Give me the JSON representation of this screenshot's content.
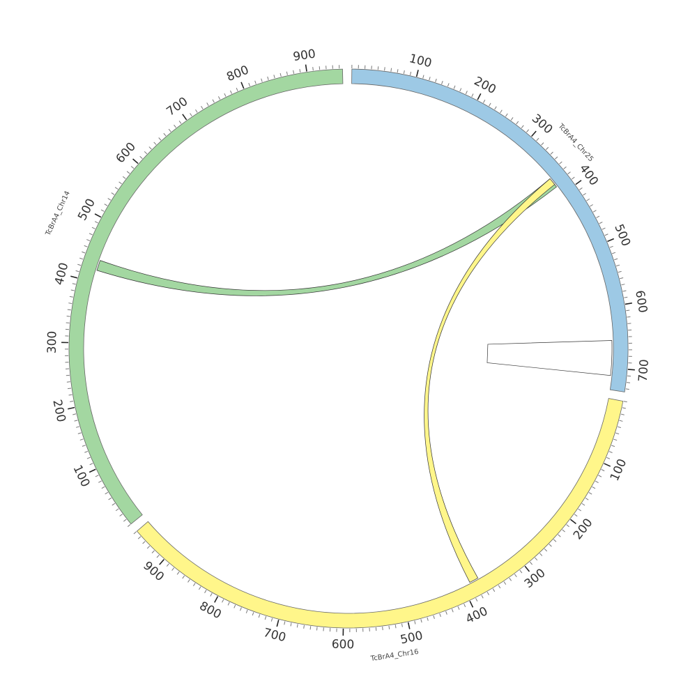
{
  "chart_data": {
    "type": "circos",
    "tick_step": 10,
    "label_step": 100,
    "chromosomes": [
      {
        "id": "chr25",
        "name": "TcBrA4_Chr25",
        "length": 735,
        "color": "#9DC9E5",
        "labels": [
          "100",
          "200",
          "300",
          "400",
          "500",
          "600",
          "700"
        ]
      },
      {
        "id": "chr16",
        "name": "TcBrA4_Chr16",
        "length": 960,
        "color": "#FFF68A",
        "labels": [
          "100",
          "200",
          "300",
          "400",
          "500",
          "600",
          "700",
          "800",
          "900"
        ]
      },
      {
        "id": "chr14",
        "name": "TcBrA4_Chr14",
        "length": 955,
        "color": "#A3D7A1",
        "labels": [
          "100",
          "200",
          "300",
          "400",
          "500",
          "600",
          "700",
          "800",
          "900"
        ]
      }
    ],
    "links": [
      {
        "from": {
          "chr": "chr25",
          "start": 368,
          "end": 385
        },
        "to": {
          "chr": "chr14",
          "start": 420,
          "end": 437
        },
        "color": "#A3D7A1"
      },
      {
        "from": {
          "chr": "chr25",
          "start": 368,
          "end": 380
        },
        "to": {
          "chr": "chr16",
          "start": 372,
          "end": 387
        },
        "color": "#FFF68A"
      },
      {
        "from": {
          "chr": "chr25",
          "start": 655,
          "end": 712
        },
        "to": {
          "chr": "chr25",
          "start": 655,
          "end": 712
        },
        "color": "#ffffff"
      }
    ]
  }
}
